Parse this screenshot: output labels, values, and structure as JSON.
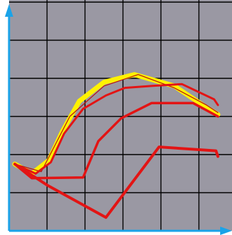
{
  "chart_data": {
    "type": "line",
    "title": "",
    "xlabel": "",
    "ylabel": "",
    "xlim": [
      0,
      6
    ],
    "ylim": [
      0,
      6
    ],
    "grid": true,
    "legend": "none",
    "colors": {
      "background": "#9a98a3",
      "grid": "#000000",
      "axis": "#1aa3e8",
      "yellow": "#fff200",
      "red": "#e31414",
      "dark_red": "#b81212"
    },
    "series": [
      {
        "color": "#fff200",
        "points": [
          [
            0.15,
            1.75
          ],
          [
            0.6,
            1.5
          ],
          [
            1.05,
            1.85
          ],
          [
            1.4,
            2.6
          ],
          [
            1.85,
            3.4
          ],
          [
            2.5,
            3.9
          ],
          [
            3.3,
            4.1
          ],
          [
            4.35,
            3.8
          ],
          [
            5.1,
            3.3
          ],
          [
            5.5,
            3.05
          ]
        ]
      },
      {
        "color": "#b81212",
        "points": [
          [
            0.15,
            1.75
          ],
          [
            0.85,
            1.55
          ],
          [
            1.6,
            3.0
          ],
          [
            2.5,
            3.8
          ],
          [
            3.4,
            4.1
          ],
          [
            4.35,
            3.75
          ],
          [
            5.2,
            3.3
          ],
          [
            5.5,
            3.1
          ]
        ]
      },
      {
        "color": "#e31414",
        "points": [
          [
            0.15,
            1.75
          ],
          [
            0.7,
            1.5
          ],
          [
            1.1,
            1.8
          ],
          [
            1.45,
            2.55
          ],
          [
            1.95,
            3.2
          ],
          [
            2.55,
            3.55
          ],
          [
            3.05,
            3.75
          ],
          [
            3.75,
            3.8
          ],
          [
            4.55,
            3.85
          ],
          [
            5.4,
            3.45
          ],
          [
            5.5,
            3.3
          ]
        ]
      },
      {
        "color": "#e31414",
        "points": [
          [
            0.15,
            1.75
          ],
          [
            0.6,
            1.38
          ],
          [
            1.95,
            1.4
          ],
          [
            2.35,
            2.35
          ],
          [
            2.95,
            2.95
          ],
          [
            3.75,
            3.35
          ],
          [
            4.85,
            3.35
          ],
          [
            5.5,
            3.0
          ]
        ]
      },
      {
        "color": "#e31414",
        "points": [
          [
            0.15,
            1.75
          ],
          [
            1.0,
            1.2
          ],
          [
            2.55,
            0.35
          ],
          [
            3.95,
            2.2
          ],
          [
            5.45,
            2.1
          ],
          [
            5.5,
            1.95
          ]
        ]
      }
    ]
  }
}
